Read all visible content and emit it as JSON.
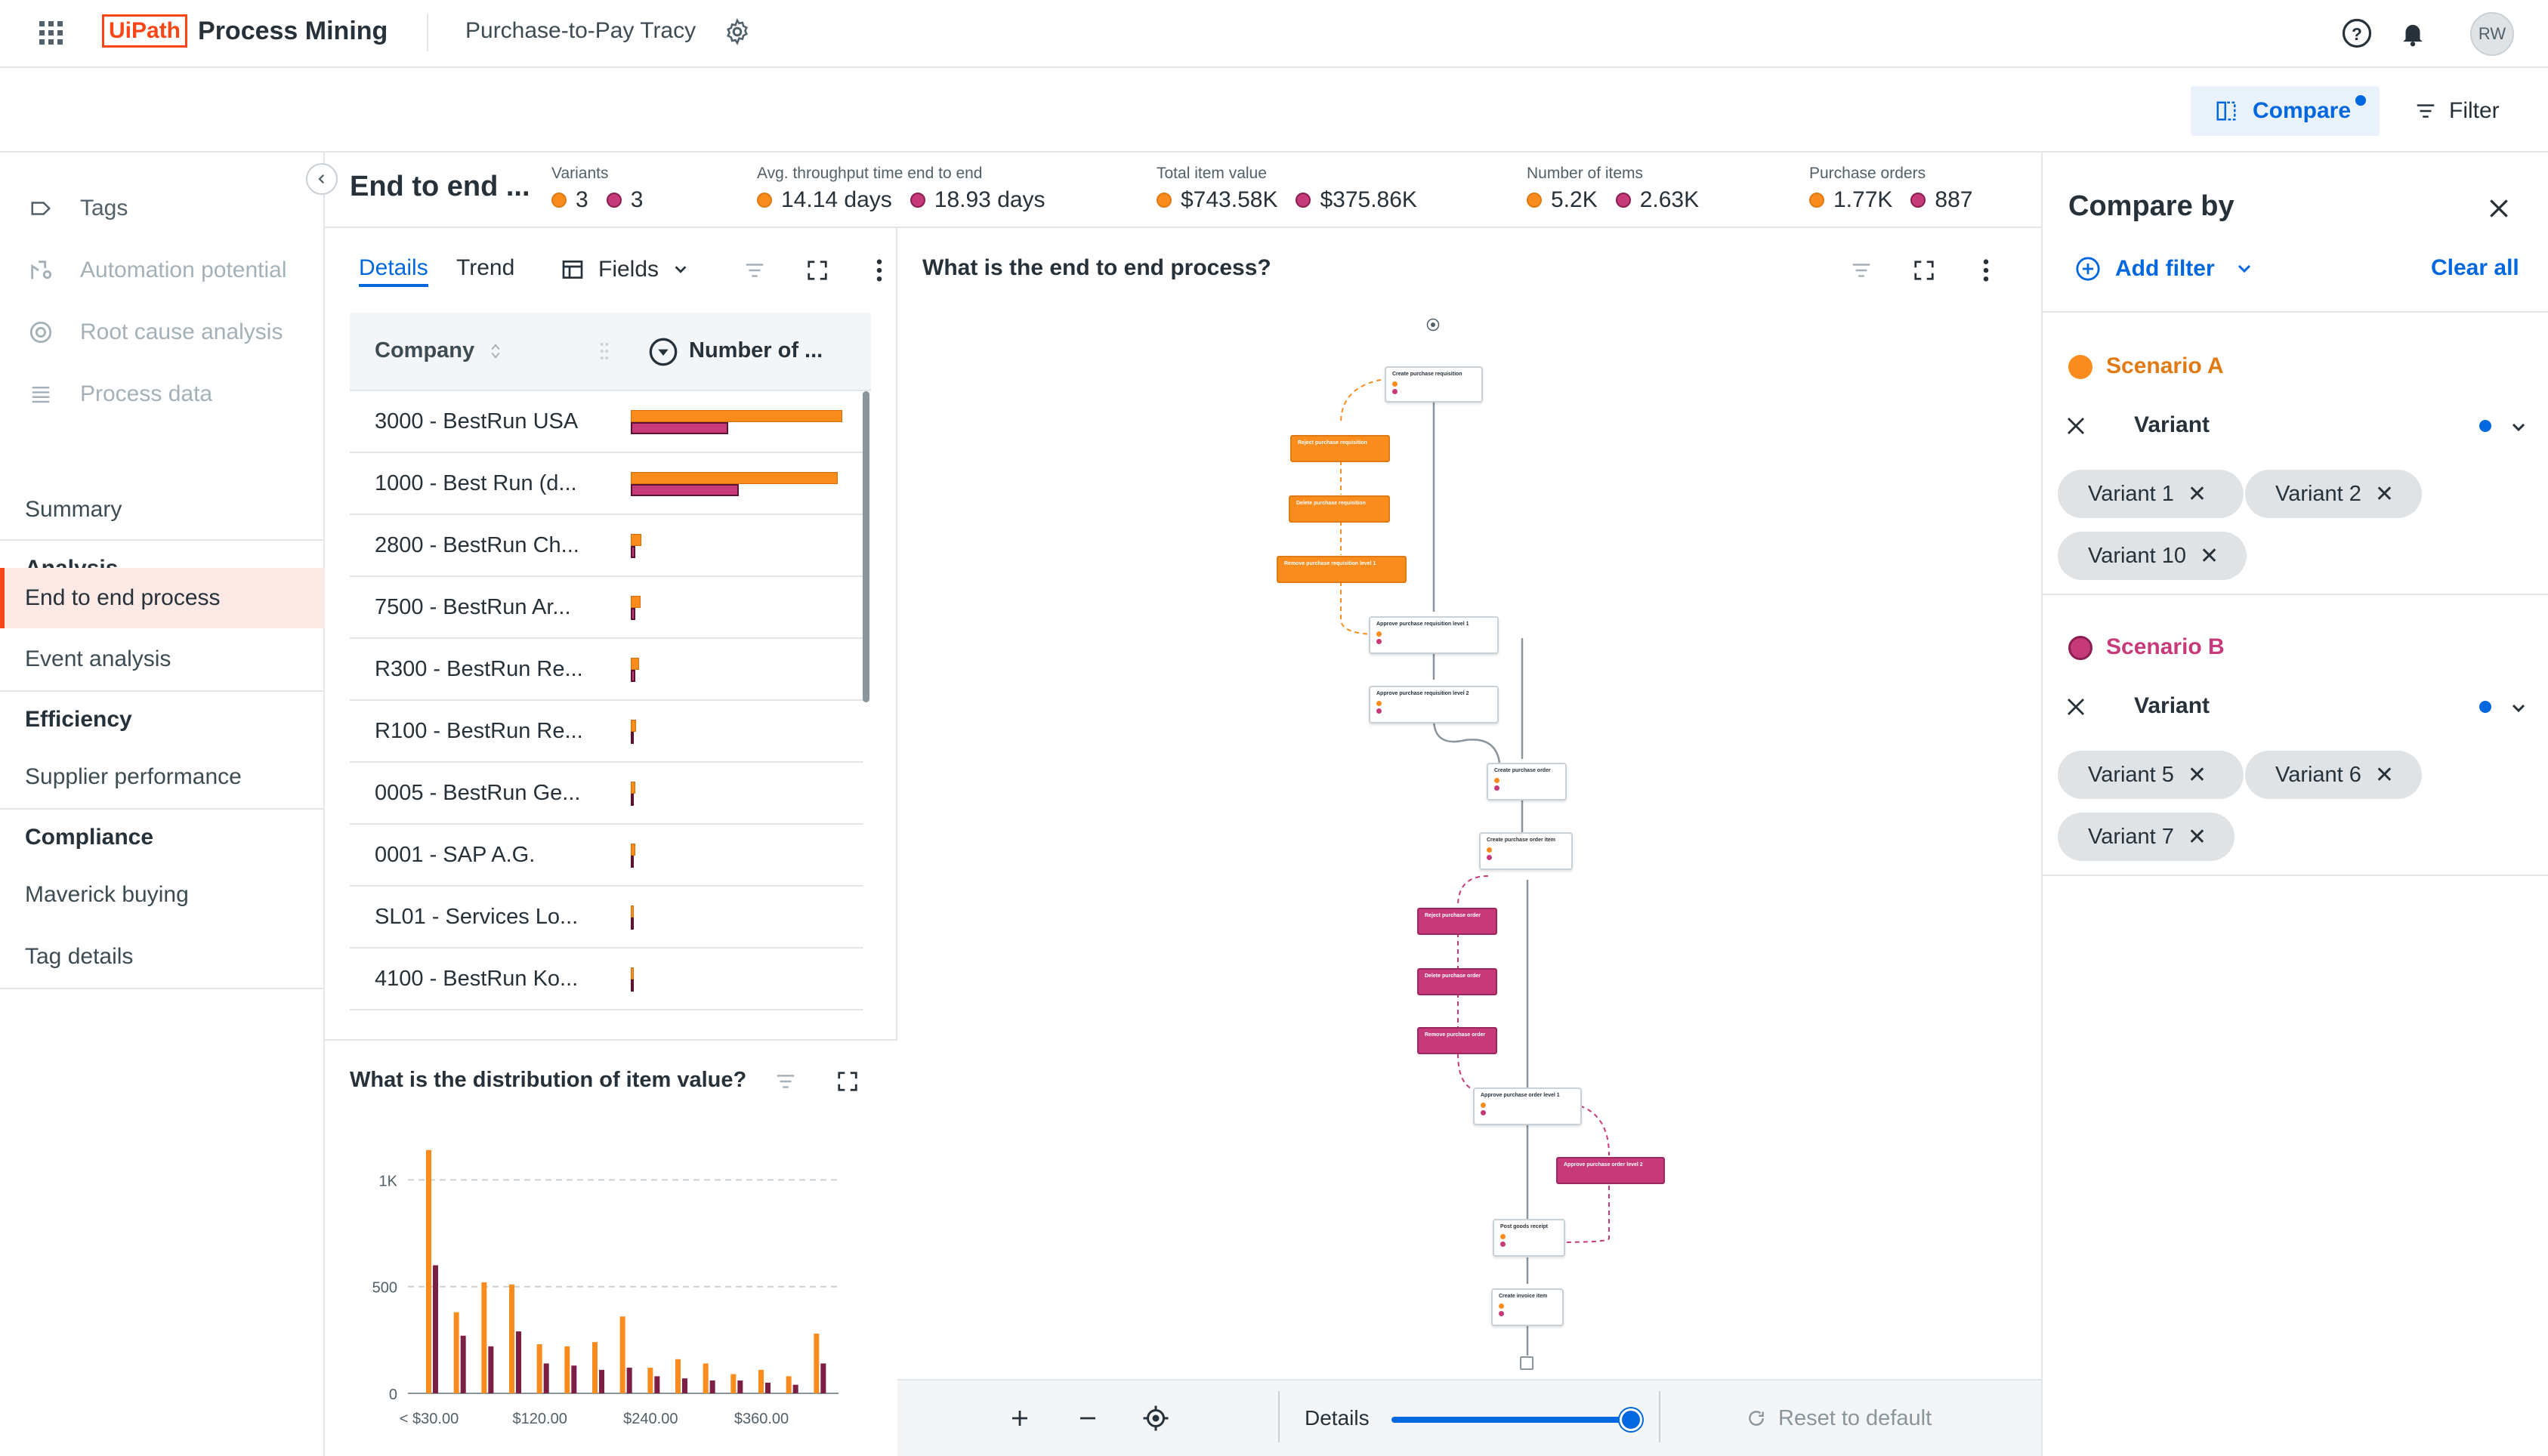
{
  "app": {
    "brand": "UiPath",
    "product": "Process Mining",
    "app_name": "Purchase-to-Pay Tracy",
    "avatar": "RW"
  },
  "toolbar": {
    "compare_label": "Compare",
    "filter_label": "Filter"
  },
  "sidebar": {
    "tools": [
      {
        "label": "Tags",
        "icon": "tag-icon"
      },
      {
        "label": "Automation potential",
        "icon": "robot-icon"
      },
      {
        "label": "Root cause analysis",
        "icon": "target-icon"
      },
      {
        "label": "Process data",
        "icon": "list-icon"
      }
    ],
    "summary": "Summary",
    "sections": [
      {
        "title": "Analysis",
        "items": [
          "End to end process",
          "Event analysis"
        ]
      },
      {
        "title": "Efficiency",
        "items": [
          "Supplier performance"
        ]
      },
      {
        "title": "Compliance",
        "items": [
          "Maverick buying",
          "Tag details"
        ]
      }
    ],
    "active_item": "End to end process"
  },
  "header": {
    "title": "End to end ...",
    "kpis": [
      {
        "label": "Variants",
        "a": "3",
        "b": "3"
      },
      {
        "label": "Avg. throughput time end to end",
        "a": "14.14 days",
        "b": "18.93 days"
      },
      {
        "label": "Total item value",
        "a": "$743.58K",
        "b": "$375.86K"
      },
      {
        "label": "Number of items",
        "a": "5.2K",
        "b": "2.63K"
      },
      {
        "label": "Purchase orders",
        "a": "1.77K",
        "b": "887"
      }
    ]
  },
  "details_panel": {
    "tabs": [
      "Details",
      "Trend"
    ],
    "fields_label": "Fields",
    "columns": [
      "Company",
      "Number of ..."
    ],
    "rows": [
      {
        "company": "3000 - BestRun USA",
        "a": 1.0,
        "b": 0.46
      },
      {
        "company": "1000 - Best Run (d...",
        "a": 0.98,
        "b": 0.51
      },
      {
        "company": "2800 - BestRun Ch...",
        "a": 0.05,
        "b": 0.02
      },
      {
        "company": "7500 - BestRun Ar...",
        "a": 0.045,
        "b": 0.02
      },
      {
        "company": "R300 - BestRun Re...",
        "a": 0.04,
        "b": 0.02
      },
      {
        "company": "R100 - BestRun Re...",
        "a": 0.025,
        "b": 0.01
      },
      {
        "company": "0005 - BestRun Ge...",
        "a": 0.02,
        "b": 0.01
      },
      {
        "company": "0001 - SAP A.G.",
        "a": 0.02,
        "b": 0.01
      },
      {
        "company": "SL01 - Services Lo...",
        "a": 0.01,
        "b": 0.01
      },
      {
        "company": "4100 - BestRun Ko...",
        "a": 0.01,
        "b": 0.01
      }
    ]
  },
  "histogram": {
    "title": "What is the distribution of item value?",
    "chart_data": {
      "type": "bar",
      "categories": [
        "< $30.00",
        "",
        "",
        "",
        "$120.00",
        "",
        "",
        "",
        "$240.00",
        "",
        "",
        "",
        "$360.00",
        "",
        ""
      ],
      "x_tick_labels": [
        "< $30.00",
        "$120.00",
        "$240.00",
        "$360.00"
      ],
      "y_tick_labels": [
        "0",
        "500",
        "1K"
      ],
      "ylim": [
        0,
        1150
      ],
      "series": [
        {
          "name": "Scenario A",
          "color": "#fa8c1e",
          "values": [
            1140,
            380,
            520,
            510,
            230,
            220,
            240,
            360,
            120,
            160,
            140,
            90,
            110,
            80,
            280
          ]
        },
        {
          "name": "Scenario B",
          "color": "#7d1f44",
          "values": [
            600,
            270,
            220,
            290,
            140,
            130,
            110,
            120,
            80,
            70,
            60,
            60,
            50,
            40,
            140
          ]
        }
      ]
    }
  },
  "process_map": {
    "title": "What is the end to end process?",
    "bottom_details_label": "Details",
    "details_slider_value": 1.0,
    "reset_label": "Reset to default",
    "activities": [
      "Create purchase requisition",
      "Reject purchase requisition",
      "Delete purchase requisition",
      "Remove purchase requisition level 1",
      "Approve purchase requisition level 1",
      "Approve purchase requisition level 2",
      "Create purchase order",
      "Create purchase order item",
      "Reject purchase order",
      "Delete purchase order",
      "Remove purchase order",
      "Approve purchase order level 1",
      "Approve purchase order level 2",
      "Post goods receipt",
      "Create invoice item"
    ]
  },
  "compare_panel": {
    "title": "Compare by",
    "add_filter": "Add filter",
    "clear_all": "Clear all",
    "scenarios": [
      {
        "name": "Scenario A",
        "color": "#fa8c1e",
        "filter": "Variant",
        "chips": [
          "Variant 1",
          "Variant 2",
          "Variant 10"
        ]
      },
      {
        "name": "Scenario B",
        "color": "#c73a7a",
        "filter": "Variant",
        "chips": [
          "Variant 5",
          "Variant 6",
          "Variant 7"
        ]
      }
    ]
  }
}
